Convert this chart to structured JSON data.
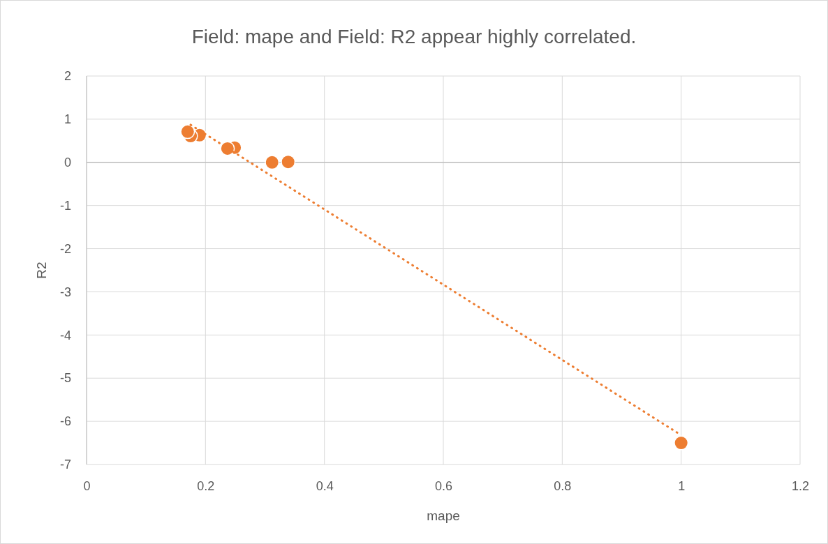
{
  "chart_data": {
    "type": "scatter",
    "title": "Field: mape and Field: R2 appear highly correlated.",
    "xlabel": "mape",
    "ylabel": "R2",
    "xlim": [
      0,
      1.2
    ],
    "xticks": [
      0,
      0.2,
      0.4,
      0.6,
      0.8,
      1,
      1.2
    ],
    "ylim": [
      -7,
      2
    ],
    "yticks": [
      -7,
      -6,
      -5,
      -4,
      -3,
      -2,
      -1,
      0,
      1,
      2
    ],
    "grid": true,
    "series": [
      {
        "marker": "circle",
        "color": "#ed7d31",
        "x": [
          0.17,
          0.175,
          0.19,
          0.237,
          0.249,
          0.312,
          0.339,
          1.0
        ],
        "values": [
          0.71,
          0.61,
          0.63,
          0.32,
          0.34,
          0,
          0.01,
          -6.5
        ]
      },
      {
        "type": "line",
        "marker": "none",
        "color": "#ed7d31",
        "line_style": "dotted",
        "x": [
          0.175,
          1.0
        ],
        "values": [
          0.87,
          -6.32
        ]
      }
    ]
  }
}
